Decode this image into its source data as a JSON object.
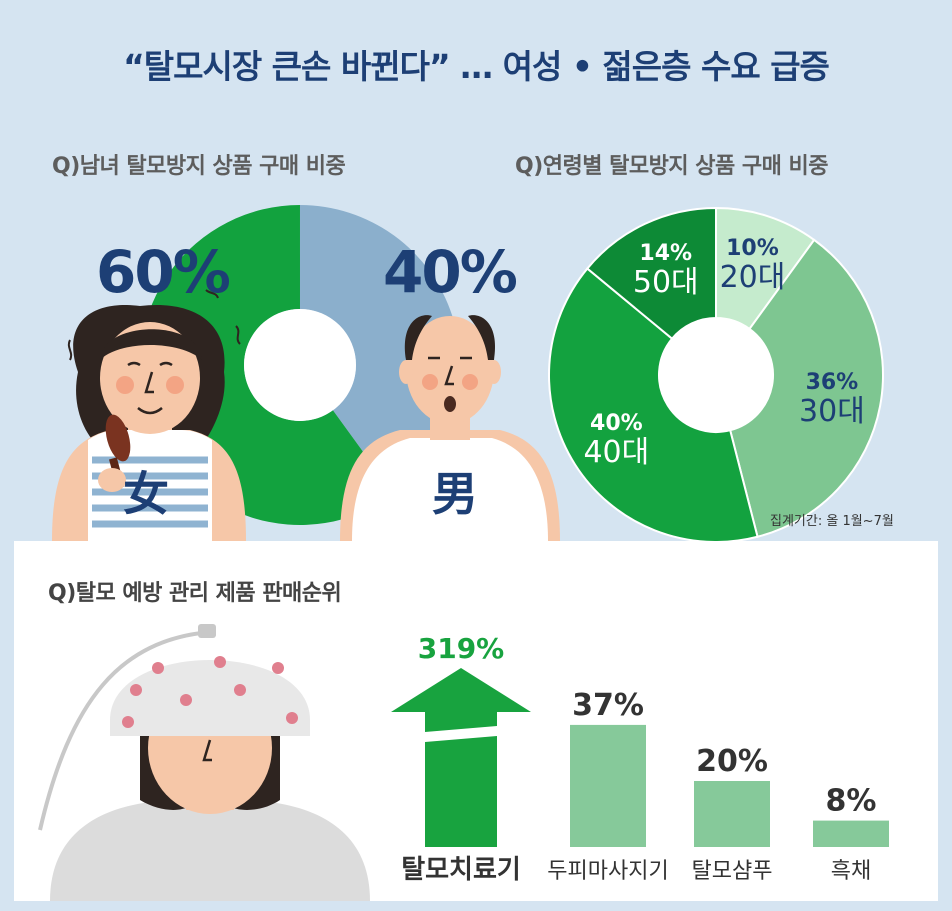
{
  "title": "“탈모시장 큰손 바뀐다” … 여성 • 젊은층 수요 급증",
  "gender_chart": {
    "question": "Q)남녀 탈모방지 상품 구매 비중",
    "female": {
      "label": "女",
      "percent_text": "60%",
      "value": 60,
      "color": "#12a23e"
    },
    "male": {
      "label": "男",
      "percent_text": "40%",
      "value": 40,
      "color": "#8bafcc"
    }
  },
  "age_chart": {
    "question": "Q)연령별 탈모방지 상품 구매 비중",
    "period": "집계기간: 올 1월~7월",
    "segments": [
      {
        "age": "20대",
        "percent_text": "10%",
        "value": 10,
        "color": "#c5ebcd"
      },
      {
        "age": "30대",
        "percent_text": "36%",
        "value": 36,
        "color": "#7ec691"
      },
      {
        "age": "40대",
        "percent_text": "40%",
        "value": 40,
        "color": "#13a23f"
      },
      {
        "age": "50대",
        "percent_text": "14%",
        "value": 14,
        "color": "#0d8a36"
      }
    ]
  },
  "ranking_chart": {
    "question": "Q)탈모 예방 관리 제품 판매순위",
    "bars": [
      {
        "name": "탈모치료기",
        "percent_text": "319%",
        "value": 319
      },
      {
        "name": "두피마사지기",
        "percent_text": "37%",
        "value": 37
      },
      {
        "name": "탈모샴푸",
        "percent_text": "20%",
        "value": 20
      },
      {
        "name": "흑채",
        "percent_text": "8%",
        "value": 8
      }
    ]
  },
  "chart_data": [
    {
      "type": "pie",
      "title": "Q)남녀 탈모방지 상품 구매 비중",
      "categories": [
        "女",
        "男"
      ],
      "values": [
        60,
        40
      ]
    },
    {
      "type": "pie",
      "title": "Q)연령별 탈모방지 상품 구매 비중",
      "categories": [
        "20대",
        "30대",
        "40대",
        "50대"
      ],
      "values": [
        10,
        36,
        40,
        14
      ]
    },
    {
      "type": "bar",
      "title": "Q)탈모 예방 관리 제품 판매순위",
      "categories": [
        "탈모치료기",
        "두피마사지기",
        "탈모샴푸",
        "흑채"
      ],
      "values": [
        319,
        37,
        20,
        8
      ]
    }
  ],
  "colors": {
    "title": "#1d3f75",
    "panel_bg": "#d5e4f1",
    "highlight_green": "#18a33f",
    "bar_light_green": "#86c99a",
    "bar_label": "#333333",
    "skin": "#f6c7a8",
    "hair": "#2e2420"
  },
  "icons": [
    "woman-icon",
    "man-icon",
    "hair-brush-icon",
    "helmet-device-icon",
    "arrow-up-icon"
  ]
}
